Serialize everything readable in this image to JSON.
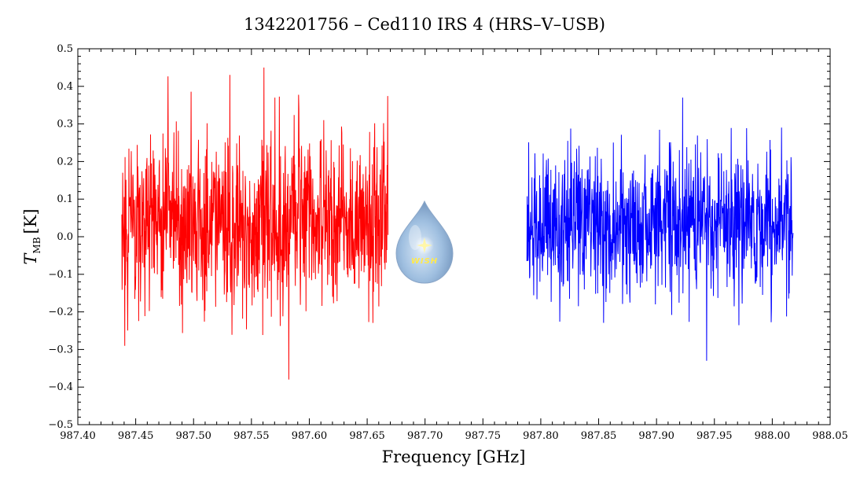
{
  "chart_data": {
    "type": "line",
    "title": "1342201756 – Ced110 IRS 4 (HRS–V–USB)",
    "xlabel": "Frequency [GHz]",
    "ylabel_main": "T",
    "ylabel_sub": "MB",
    "ylabel_unit": "[K]",
    "xlim": [
      987.4,
      988.05
    ],
    "ylim": [
      -0.5,
      0.5
    ],
    "x_ticks": [
      "987.40",
      "987.45",
      "987.50",
      "987.55",
      "987.60",
      "987.65",
      "987.70",
      "987.75",
      "987.80",
      "987.85",
      "987.90",
      "987.95",
      "988.00",
      "988.05"
    ],
    "y_ticks": [
      "0.5",
      "0.4",
      "0.3",
      "0.2",
      "0.1",
      "0.0",
      "−0.1",
      "−0.2",
      "−0.3",
      "−0.4",
      "−0.5"
    ],
    "grid": false,
    "series": [
      {
        "color": "#ff0000",
        "x_range": [
          987.438,
          987.668
        ],
        "n_points": 900,
        "mean": 0.04,
        "rms": 0.12,
        "max": 0.45,
        "min": -0.38
      },
      {
        "color": "#0000ff",
        "x_range": [
          987.788,
          988.018
        ],
        "n_points": 900,
        "mean": 0.04,
        "rms": 0.1,
        "max": 0.37,
        "min": -0.33
      }
    ]
  },
  "logo": {
    "text": "WISH",
    "icon": "water-drop-star-icon"
  }
}
